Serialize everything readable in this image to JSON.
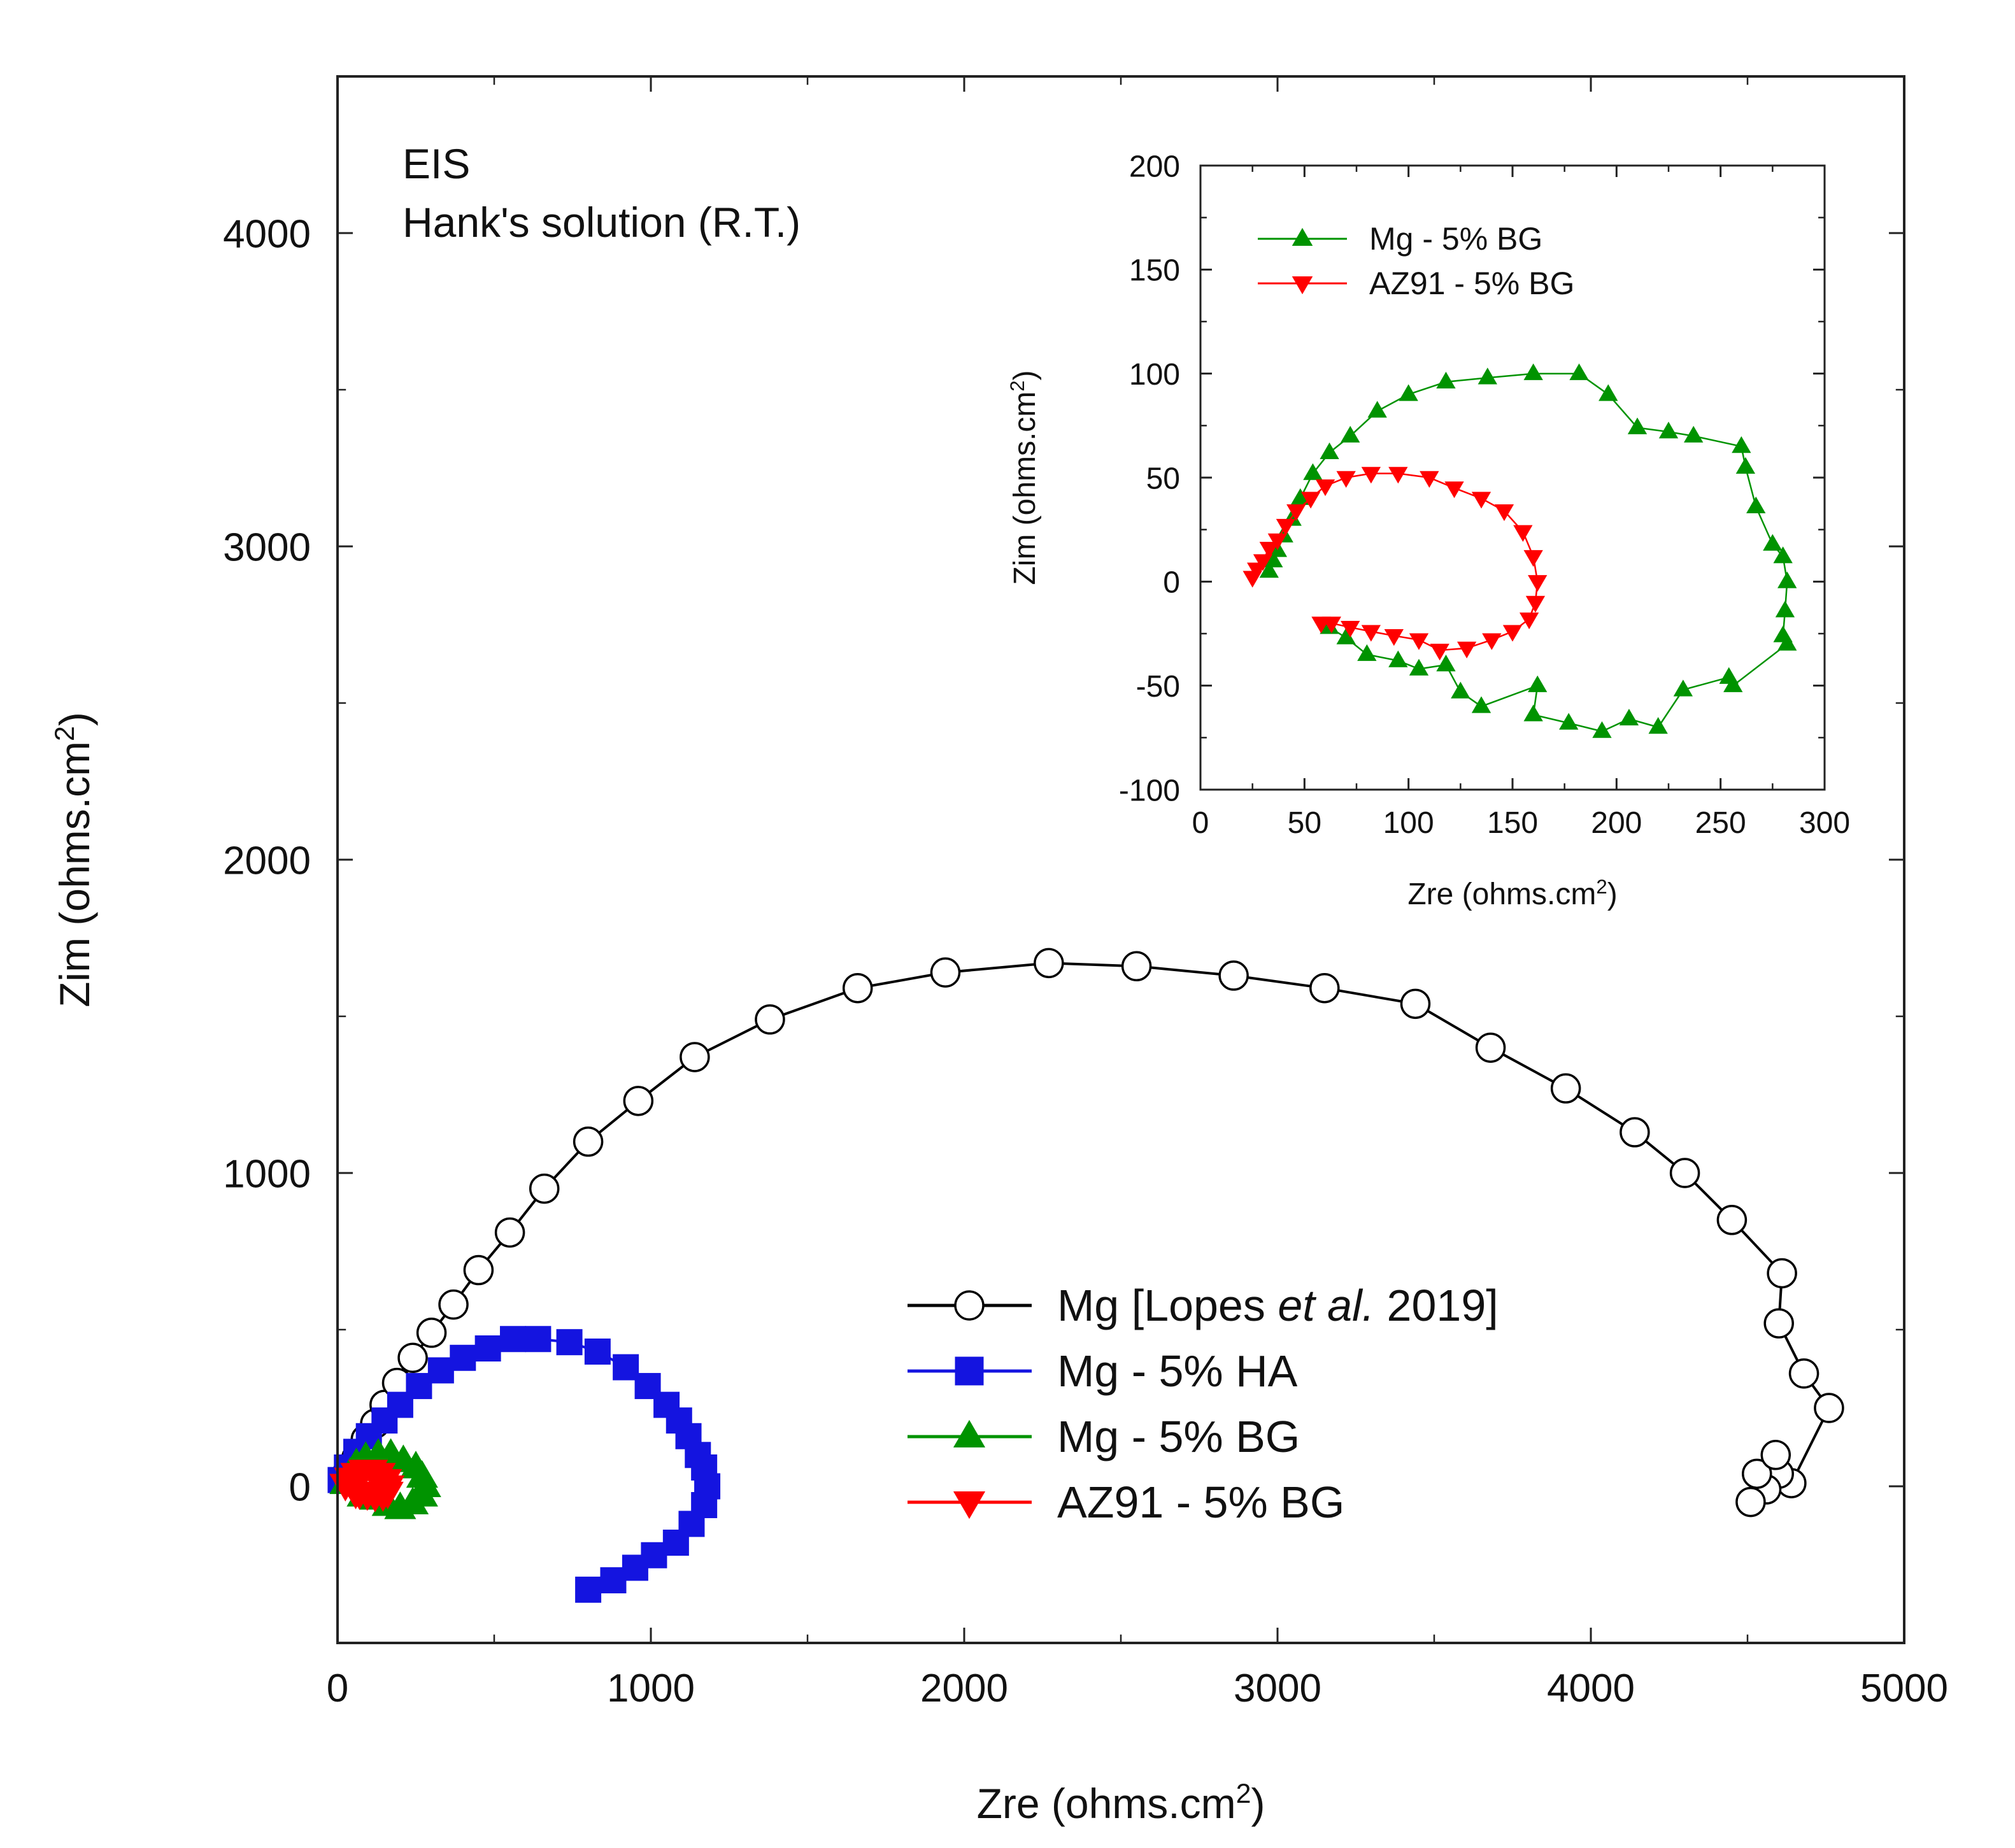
{
  "chart_data": [
    {
      "id": "main",
      "type": "scatter",
      "annotation": [
        "EIS",
        "Hank's solution (R.T.)"
      ],
      "xlabel": "Zre (ohms.cm²)",
      "ylabel": "Zim (ohms.cm²)",
      "xlim": [
        0,
        5000
      ],
      "ylim": [
        -500,
        4500
      ],
      "xticks": [
        0,
        1000,
        2000,
        3000,
        4000,
        5000
      ],
      "yticks": [
        0,
        1000,
        2000,
        3000,
        4000
      ],
      "legend_position": "bottom-center",
      "legend_style": "upright",
      "series": [
        {
          "name": "Mg [Lopes et al. 2019]",
          "name_parts": [
            {
              "text": "Mg [Lopes ",
              "italic": false
            },
            {
              "text": "et al.",
              "italic": true
            },
            {
              "text": " 2019]",
              "italic": false
            }
          ],
          "marker": "circle-open",
          "color": "#000000",
          "line": true,
          "points": [
            [
              30,
              40
            ],
            [
              60,
              90
            ],
            [
              90,
              150
            ],
            [
              120,
              200
            ],
            [
              150,
              260
            ],
            [
              190,
              330
            ],
            [
              240,
              410
            ],
            [
              300,
              490
            ],
            [
              370,
              580
            ],
            [
              450,
              690
            ],
            [
              550,
              810
            ],
            [
              660,
              950
            ],
            [
              800,
              1100
            ],
            [
              960,
              1230
            ],
            [
              1140,
              1370
            ],
            [
              1380,
              1490
            ],
            [
              1660,
              1590
            ],
            [
              1940,
              1640
            ],
            [
              2270,
              1670
            ],
            [
              2550,
              1660
            ],
            [
              2860,
              1630
            ],
            [
              3150,
              1590
            ],
            [
              3440,
              1540
            ],
            [
              3680,
              1400
            ],
            [
              3920,
              1270
            ],
            [
              4140,
              1130
            ],
            [
              4300,
              1000
            ],
            [
              4450,
              850
            ],
            [
              4610,
              680
            ],
            [
              4600,
              520
            ],
            [
              4680,
              360
            ],
            [
              4760,
              250
            ],
            [
              4640,
              10
            ],
            [
              4600,
              40
            ],
            [
              4560,
              -10
            ],
            [
              4510,
              -50
            ],
            [
              4530,
              40
            ],
            [
              4590,
              100
            ]
          ]
        },
        {
          "name": "Mg - 5% HA",
          "marker": "square",
          "color": "#1414e0",
          "line": true,
          "points": [
            [
              10,
              20
            ],
            [
              30,
              60
            ],
            [
              60,
              110
            ],
            [
              100,
              160
            ],
            [
              150,
              210
            ],
            [
              200,
              260
            ],
            [
              260,
              320
            ],
            [
              330,
              370
            ],
            [
              400,
              410
            ],
            [
              480,
              440
            ],
            [
              560,
              470
            ],
            [
              640,
              470
            ],
            [
              740,
              460
            ],
            [
              830,
              430
            ],
            [
              920,
              380
            ],
            [
              990,
              320
            ],
            [
              1050,
              260
            ],
            [
              1090,
              210
            ],
            [
              1120,
              160
            ],
            [
              1150,
              100
            ],
            [
              1170,
              60
            ],
            [
              1180,
              0
            ],
            [
              1170,
              -60
            ],
            [
              1130,
              -120
            ],
            [
              1080,
              -180
            ],
            [
              1010,
              -220
            ],
            [
              950,
              -260
            ],
            [
              880,
              -300
            ],
            [
              800,
              -330
            ]
          ]
        },
        {
          "name": "Mg - 5% BG",
          "marker": "triangle-up",
          "color": "#009300",
          "line": true,
          "points": [
            [
              25,
              10
            ],
            [
              40,
              40
            ],
            [
              60,
              70
            ],
            [
              90,
              90
            ],
            [
              130,
              100
            ],
            [
              170,
              100
            ],
            [
              210,
              80
            ],
            [
              250,
              60
            ],
            [
              270,
              30
            ],
            [
              280,
              0
            ],
            [
              270,
              -30
            ],
            [
              240,
              -55
            ],
            [
              200,
              -70
            ],
            [
              160,
              -60
            ],
            [
              120,
              -40
            ],
            [
              80,
              -30
            ]
          ]
        },
        {
          "name": "AZ91 - 5% BG",
          "marker": "triangle-down",
          "color": "#ff0000",
          "line": true,
          "points": [
            [
              25,
              5
            ],
            [
              40,
              25
            ],
            [
              60,
              40
            ],
            [
              85,
              50
            ],
            [
              110,
              50
            ],
            [
              135,
              40
            ],
            [
              155,
              20
            ],
            [
              163,
              0
            ],
            [
              160,
              -20
            ],
            [
              145,
              -28
            ],
            [
              120,
              -30
            ],
            [
              95,
              -25
            ],
            [
              70,
              -22
            ],
            [
              58,
              -20
            ]
          ]
        }
      ]
    },
    {
      "id": "inset",
      "type": "scatter",
      "xlabel": "Zre (ohms.cm²)",
      "ylabel": "Zim (ohms.cm²)",
      "xlim": [
        0,
        300
      ],
      "ylim": [
        -100,
        200
      ],
      "xticks": [
        0,
        50,
        100,
        150,
        200,
        250,
        300
      ],
      "yticks": [
        -100,
        -50,
        0,
        50,
        100,
        150,
        200
      ],
      "legend_position": "top-left",
      "series": [
        {
          "name": "Mg - 5% BG",
          "marker": "triangle-up",
          "color": "#009300",
          "line": true,
          "points": [
            [
              33,
              5
            ],
            [
              35,
              10
            ],
            [
              37,
              15
            ],
            [
              40,
              22
            ],
            [
              44,
              30
            ],
            [
              48,
              40
            ],
            [
              54,
              52
            ],
            [
              62,
              62
            ],
            [
              72,
              70
            ],
            [
              85,
              82
            ],
            [
              100,
              90
            ],
            [
              118,
              96
            ],
            [
              138,
              98
            ],
            [
              160,
              100
            ],
            [
              182,
              100
            ],
            [
              196,
              90
            ],
            [
              210,
              74
            ],
            [
              225,
              72
            ],
            [
              237,
              70
            ],
            [
              260,
              65
            ],
            [
              262,
              55
            ],
            [
              267,
              36
            ],
            [
              275,
              18
            ],
            [
              280,
              12
            ],
            [
              282,
              0
            ],
            [
              281,
              -14
            ],
            [
              280,
              -26
            ],
            [
              282,
              -30
            ],
            [
              256,
              -50
            ],
            [
              254,
              -46
            ],
            [
              232,
              -52
            ],
            [
              220,
              -70
            ],
            [
              206,
              -66
            ],
            [
              193,
              -72
            ],
            [
              177,
              -68
            ],
            [
              160,
              -64
            ],
            [
              162,
              -50
            ],
            [
              135,
              -60
            ],
            [
              125,
              -53
            ],
            [
              118,
              -40
            ],
            [
              105,
              -42
            ],
            [
              95,
              -38
            ],
            [
              80,
              -35
            ],
            [
              70,
              -27
            ],
            [
              62,
              -22
            ]
          ]
        },
        {
          "name": "AZ91 - 5% BG",
          "marker": "triangle-down",
          "color": "#ff0000",
          "line": true,
          "points": [
            [
              25,
              2
            ],
            [
              27,
              6
            ],
            [
              30,
              10
            ],
            [
              33,
              16
            ],
            [
              37,
              20
            ],
            [
              41,
              27
            ],
            [
              46,
              34
            ],
            [
              53,
              40
            ],
            [
              60,
              46
            ],
            [
              70,
              50
            ],
            [
              82,
              52
            ],
            [
              95,
              52
            ],
            [
              110,
              50
            ],
            [
              122,
              45
            ],
            [
              135,
              40
            ],
            [
              146,
              34
            ],
            [
              155,
              24
            ],
            [
              160,
              12
            ],
            [
              162,
              0
            ],
            [
              161,
              -10
            ],
            [
              158,
              -18
            ],
            [
              150,
              -24
            ],
            [
              140,
              -28
            ],
            [
              128,
              -32
            ],
            [
              115,
              -33
            ],
            [
              105,
              -28
            ],
            [
              93,
              -26
            ],
            [
              82,
              -24
            ],
            [
              72,
              -22
            ],
            [
              63,
              -20
            ],
            [
              58,
              -20
            ]
          ]
        }
      ]
    }
  ]
}
